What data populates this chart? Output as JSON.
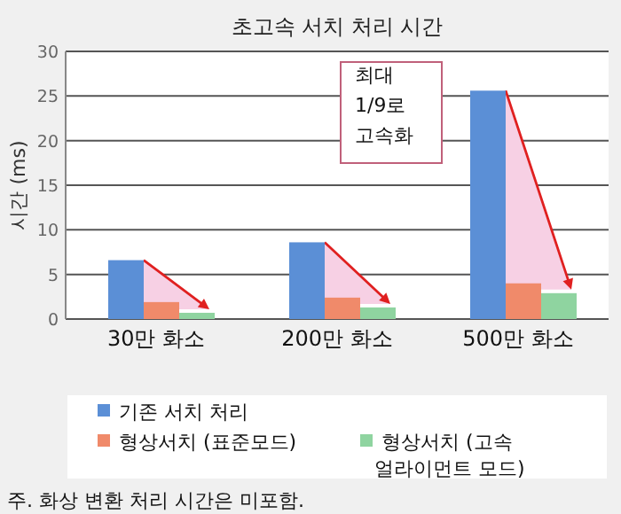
{
  "chart_data": {
    "type": "bar",
    "title": "초고속 서치 처리 시간",
    "ylabel": "시간 (ms)",
    "categories": [
      "30만 화소",
      "200만 화소",
      "500만 화소"
    ],
    "series": [
      {
        "name": "기존 서치 처리",
        "color": "#5b8fd6",
        "values": [
          6.6,
          8.6,
          25.6
        ]
      },
      {
        "name": "형상서치 (표준모드)",
        "color": "#f08a6a",
        "values": [
          1.9,
          2.4,
          4.0
        ]
      },
      {
        "name": "형상서치 (고속 얼라이먼트 모드)",
        "color": "#8fd4a0",
        "values": [
          0.7,
          1.3,
          2.9
        ]
      }
    ],
    "ylim": [
      0,
      30
    ],
    "yticks": [
      0,
      5,
      10,
      15,
      20,
      25,
      30
    ],
    "grid": "y",
    "legend": "bottom",
    "annotations": [
      "최대 1/9로 고속화",
      "주. 화상 변환 처리 시간은 미포함."
    ]
  }
}
